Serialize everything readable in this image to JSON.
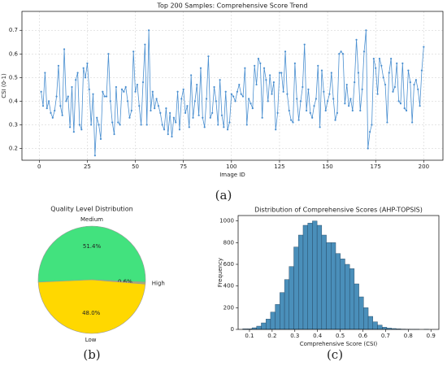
{
  "figure_labels": [
    "(a)",
    "(b)",
    "(c)"
  ],
  "chart_data": [
    {
      "type": "line",
      "title": "Top 200 Samples: Comprehensive Score Trend",
      "x_label": "Image ID",
      "y_label": "CSI (0-1)",
      "x": [
        1,
        2,
        3,
        4,
        5,
        6,
        7,
        8,
        9,
        10,
        11,
        12,
        13,
        14,
        15,
        16,
        17,
        18,
        19,
        20,
        21,
        22,
        23,
        24,
        25,
        26,
        27,
        28,
        29,
        30,
        31,
        32,
        33,
        34,
        35,
        36,
        37,
        38,
        39,
        40,
        41,
        42,
        43,
        44,
        45,
        46,
        47,
        48,
        49,
        50,
        51,
        52,
        53,
        54,
        55,
        56,
        57,
        58,
        59,
        60,
        61,
        62,
        63,
        64,
        65,
        66,
        67,
        68,
        69,
        70,
        71,
        72,
        73,
        74,
        75,
        76,
        77,
        78,
        79,
        80,
        81,
        82,
        83,
        84,
        85,
        86,
        87,
        88,
        89,
        90,
        91,
        92,
        93,
        94,
        95,
        96,
        97,
        98,
        99,
        100,
        101,
        102,
        103,
        104,
        105,
        106,
        107,
        108,
        109,
        110,
        111,
        112,
        113,
        114,
        115,
        116,
        117,
        118,
        119,
        120,
        121,
        122,
        123,
        124,
        125,
        126,
        127,
        128,
        129,
        130,
        131,
        132,
        133,
        134,
        135,
        136,
        137,
        138,
        139,
        140,
        141,
        142,
        143,
        144,
        145,
        146,
        147,
        148,
        149,
        150,
        151,
        152,
        153,
        154,
        155,
        156,
        157,
        158,
        159,
        160,
        161,
        162,
        163,
        164,
        165,
        166,
        167,
        168,
        169,
        170,
        171,
        172,
        173,
        174,
        175,
        176,
        177,
        178,
        179,
        180,
        181,
        182,
        183,
        184,
        185,
        186,
        187,
        188,
        189,
        190,
        191,
        192,
        193,
        194,
        195,
        196,
        197,
        198,
        199,
        200
      ],
      "series": [
        {
          "name": "CSI",
          "color": "#4a8fd0",
          "values": [
            0.44,
            0.38,
            0.52,
            0.37,
            0.4,
            0.35,
            0.33,
            0.36,
            0.42,
            0.55,
            0.38,
            0.34,
            0.62,
            0.4,
            0.42,
            0.29,
            0.46,
            0.27,
            0.49,
            0.52,
            0.3,
            0.28,
            0.54,
            0.5,
            0.56,
            0.45,
            0.3,
            0.43,
            0.17,
            0.33,
            0.3,
            0.24,
            0.44,
            0.42,
            0.42,
            0.6,
            0.4,
            0.31,
            0.26,
            0.46,
            0.31,
            0.3,
            0.45,
            0.44,
            0.46,
            0.4,
            0.33,
            0.36,
            0.61,
            0.44,
            0.47,
            0.38,
            0.3,
            0.48,
            0.64,
            0.3,
            0.7,
            0.36,
            0.44,
            0.37,
            0.41,
            0.38,
            0.35,
            0.3,
            0.28,
            0.37,
            0.26,
            0.35,
            0.25,
            0.33,
            0.31,
            0.44,
            0.28,
            0.41,
            0.45,
            0.35,
            0.38,
            0.29,
            0.51,
            0.33,
            0.4,
            0.47,
            0.34,
            0.54,
            0.33,
            0.29,
            0.41,
            0.59,
            0.33,
            0.35,
            0.46,
            0.4,
            0.3,
            0.49,
            0.34,
            0.29,
            0.44,
            0.28,
            0.31,
            0.43,
            0.42,
            0.4,
            0.44,
            0.47,
            0.43,
            0.42,
            0.54,
            0.3,
            0.41,
            0.39,
            0.37,
            0.55,
            0.47,
            0.58,
            0.56,
            0.33,
            0.54,
            0.49,
            0.4,
            0.51,
            0.43,
            0.48,
            0.28,
            0.35,
            0.52,
            0.52,
            0.44,
            0.61,
            0.43,
            0.36,
            0.32,
            0.31,
            0.56,
            0.41,
            0.32,
            0.4,
            0.46,
            0.64,
            0.36,
            0.45,
            0.35,
            0.33,
            0.38,
            0.41,
            0.55,
            0.29,
            0.53,
            0.44,
            0.36,
            0.4,
            0.43,
            0.52,
            0.41,
            0.32,
            0.35,
            0.6,
            0.61,
            0.6,
            0.39,
            0.47,
            0.38,
            0.41,
            0.36,
            0.48,
            0.66,
            0.52,
            0.36,
            0.45,
            0.61,
            0.7,
            0.2,
            0.27,
            0.3,
            0.58,
            0.54,
            0.43,
            0.58,
            0.55,
            0.5,
            0.47,
            0.31,
            0.52,
            0.58,
            0.44,
            0.46,
            0.56,
            0.4,
            0.39,
            0.56,
            0.37,
            0.36,
            0.53,
            0.48,
            0.31,
            0.47,
            0.49,
            0.45,
            0.38,
            0.53,
            0.63
          ]
        }
      ],
      "xlim": [
        -9,
        210
      ],
      "xticks": [
        0,
        25,
        50,
        75,
        100,
        125,
        150,
        175,
        200
      ],
      "ylim": [
        0.15,
        0.78
      ],
      "yticks": [
        0.2,
        0.3,
        0.4,
        0.5,
        0.6,
        0.7
      ],
      "grid": true
    },
    {
      "type": "pie",
      "title": "Quality Level Distribution",
      "categories": [
        "Medium",
        "High",
        "Low"
      ],
      "values": [
        51.4,
        0.6,
        48.0
      ],
      "value_labels": [
        "51.4%",
        "0.6%",
        "48.0%"
      ],
      "colors": [
        "#42e27e",
        "#a8a87a",
        "#ffd800"
      ]
    },
    {
      "type": "histogram",
      "title": "Distribution of Comprehensive Scores (AHP-TOPSIS)",
      "x_label": "Comprehensive Score (CSI)",
      "y_label": "Frequency",
      "bins": [
        0.07,
        0.0905,
        0.111,
        0.1315,
        0.152,
        0.1725,
        0.193,
        0.2135,
        0.234,
        0.2545,
        0.275,
        0.2955,
        0.316,
        0.3365,
        0.357,
        0.3775,
        0.398,
        0.4185,
        0.439,
        0.4595,
        0.48,
        0.5005,
        0.521,
        0.5415,
        0.562,
        0.5825,
        0.603,
        0.6235,
        0.644,
        0.6645,
        0.685,
        0.7055,
        0.726,
        0.7465,
        0.767,
        0.7875,
        0.808,
        0.8285,
        0.849,
        0.8695,
        0.89
      ],
      "values": [
        5,
        5,
        15,
        30,
        60,
        95,
        160,
        230,
        340,
        460,
        580,
        760,
        870,
        960,
        980,
        1000,
        960,
        870,
        800,
        800,
        700,
        650,
        600,
        560,
        420,
        300,
        200,
        120,
        70,
        40,
        20,
        12,
        8,
        5,
        3,
        2,
        1,
        1,
        0,
        1
      ],
      "color": "#4a8fba",
      "xlim": [
        0.05,
        0.935
      ],
      "xticks": [
        0.1,
        0.2,
        0.3,
        0.4,
        0.5,
        0.6,
        0.7,
        0.8,
        0.9
      ],
      "ylim": [
        0,
        1050
      ],
      "yticks": [
        0,
        200,
        400,
        600,
        800,
        1000
      ],
      "grid": false
    }
  ]
}
